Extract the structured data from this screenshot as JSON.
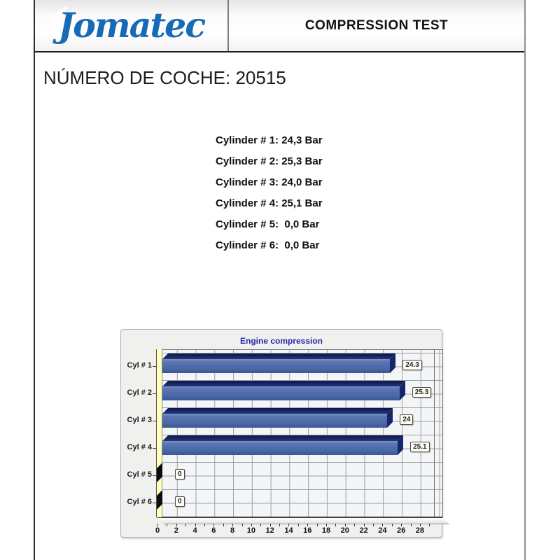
{
  "header": {
    "logo_text": "Jomatec",
    "title": "COMPRESSION TEST"
  },
  "car_number_line": "NÚMERO DE COCHE: 20515",
  "readings": {
    "lines": [
      "Cylinder # 1: 24,3 Bar",
      "Cylinder # 2: 25,3 Bar",
      "Cylinder # 3: 24,0 Bar",
      "Cylinder # 4: 25,1 Bar",
      "Cylinder # 5:  0,0 Bar",
      "Cylinder # 6:  0,0 Bar"
    ]
  },
  "chart_data": {
    "type": "bar",
    "orientation": "horizontal",
    "title": "Engine compression",
    "categories": [
      "Cyl # 1",
      "Cyl # 2",
      "Cyl # 3",
      "Cyl # 4",
      "Cyl # 5",
      "Cyl # 6"
    ],
    "values": [
      24.3,
      25.3,
      24,
      25.1,
      0,
      0
    ],
    "value_labels": [
      "24.3",
      "25.3",
      "24",
      "25.1",
      "0",
      "0"
    ],
    "unit": "Bar",
    "xlim": [
      0,
      29.5
    ],
    "x_tick_labels": [
      0,
      2,
      4,
      6,
      8,
      10,
      12,
      14,
      16,
      18,
      20,
      22,
      24,
      26,
      28
    ],
    "grid": true,
    "legend": "none",
    "colors": {
      "bar_face": "#4a67a6",
      "bar_top": "#101a55",
      "bar_end": "#16266b",
      "zero_bar": "#0b0b12",
      "wall": "#ffffc2",
      "title": "#2527a8",
      "plot_bg": "#f4f5f7",
      "grid_line": "#9aa0a8",
      "value_box_bg": "#fffef4"
    }
  }
}
